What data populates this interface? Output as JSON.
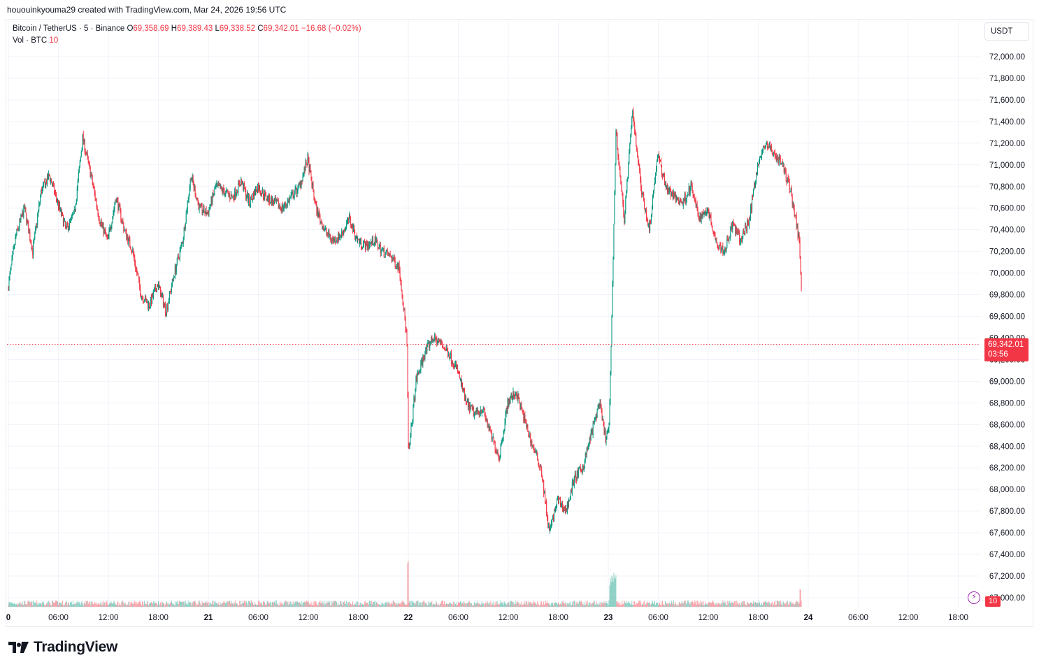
{
  "attribution": "hououinkyouma29 created with TradingView.com, Mar 24, 2026 19:56 UTC",
  "legend": {
    "symbol": "Bitcoin / TetherUS · 5 · Binance",
    "o_label": "O",
    "o_value": "69,358.69",
    "h_label": "H",
    "h_value": "69,389.43",
    "l_label": "L",
    "l_value": "69,338.52",
    "c_label": "C",
    "c_value": "69,342.01",
    "change": "−16.68 (−0.02%)",
    "vol_label": "Vol · BTC",
    "vol_value": "10"
  },
  "currency": "USDT",
  "last_price": "69,342.01",
  "countdown": "03:56",
  "vol_badge": "10",
  "brand": "TradingView",
  "colors": {
    "up": "#089981",
    "down": "#f23645",
    "grid": "#f0f3fa",
    "text": "#131722",
    "accent": "#9c27b0"
  },
  "chart_data": {
    "type": "candlestick",
    "symbol": "BTCUSDT",
    "interval": "5",
    "ylim": [
      66900,
      72200
    ],
    "y_ticks": [
      "72,000.00",
      "71,800.00",
      "71,600.00",
      "71,400.00",
      "71,200.00",
      "71,000.00",
      "70,800.00",
      "70,600.00",
      "70,400.00",
      "70,200.00",
      "70,000.00",
      "69,800.00",
      "69,600.00",
      "69,400.00",
      "69,200.00",
      "69,000.00",
      "68,800.00",
      "68,600.00",
      "68,400.00",
      "68,200.00",
      "68,000.00",
      "67,800.00",
      "67,600.00",
      "67,400.00",
      "67,200.00",
      "67,000.00"
    ],
    "x_ticks": [
      "0",
      "06:00",
      "12:00",
      "18:00",
      "21",
      "06:00",
      "12:00",
      "18:00",
      "22",
      "06:00",
      "12:00",
      "18:00",
      "23",
      "06:00",
      "12:00",
      "18:00",
      "24",
      "06:00",
      "12:00",
      "18:00"
    ],
    "price_path_hours": [
      0,
      1,
      2,
      3,
      4,
      5,
      6,
      7,
      8,
      9,
      10,
      11,
      12,
      13,
      14,
      15,
      16,
      17,
      18,
      19,
      20,
      21,
      22,
      23,
      24,
      25,
      26,
      27,
      28,
      29,
      30,
      31,
      32,
      33,
      34,
      35,
      36,
      37,
      38,
      39,
      40,
      41,
      42,
      43,
      44,
      45,
      46,
      47,
      47.9,
      48.1,
      49,
      50,
      51,
      52,
      53,
      54,
      55,
      56,
      57,
      58,
      59,
      60,
      61,
      62,
      63,
      64,
      65,
      66,
      67,
      68,
      69,
      70,
      71,
      71.8,
      72.2,
      73,
      74,
      75,
      76,
      77,
      78,
      79,
      80,
      81,
      82,
      83,
      84,
      85,
      86,
      87,
      88,
      89,
      90,
      91,
      92,
      93,
      94,
      95,
      95.3
    ],
    "price_path_values": [
      69850,
      70350,
      70600,
      70200,
      70750,
      70900,
      70650,
      70400,
      70550,
      71250,
      70900,
      70500,
      70300,
      70700,
      70400,
      70200,
      69800,
      69700,
      69900,
      69650,
      70000,
      70300,
      70900,
      70600,
      70550,
      70800,
      70750,
      70700,
      70850,
      70650,
      70800,
      70700,
      70650,
      70600,
      70700,
      70800,
      71050,
      70600,
      70400,
      70300,
      70350,
      70500,
      70300,
      70250,
      70300,
      70200,
      70150,
      70050,
      69400,
      68300,
      69000,
      69250,
      69400,
      69350,
      69250,
      69100,
      68800,
      68700,
      68750,
      68500,
      68300,
      68800,
      68900,
      68650,
      68400,
      68200,
      67600,
      67900,
      67800,
      68100,
      68200,
      68500,
      68800,
      68450,
      68600,
      71300,
      70500,
      71500,
      70800,
      70400,
      71100,
      70800,
      70700,
      70650,
      70800,
      70500,
      70600,
      70300,
      70200,
      70450,
      70300,
      70500,
      71000,
      71200,
      71100,
      71000,
      70750,
      70300,
      69800,
      69300,
      69700,
      69400,
      69342
    ]
  }
}
